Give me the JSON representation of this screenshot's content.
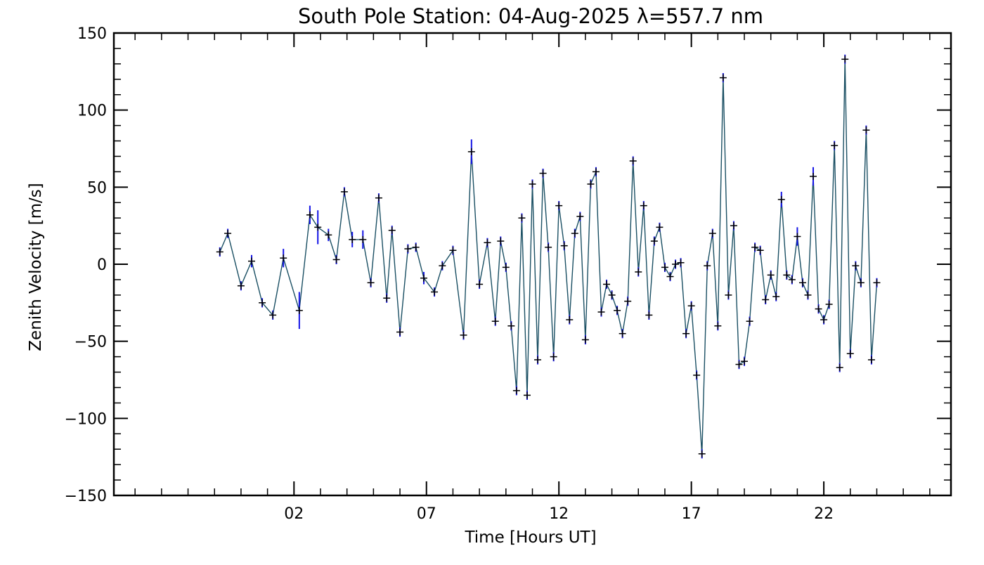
{
  "chart_data": {
    "type": "scatter",
    "title": "South Pole Station: 04-Aug-2025 λ=557.7 nm",
    "xlabel": "Time [Hours UT]",
    "ylabel": "Zenith Velocity [m/s]",
    "xlim": [
      -4.8,
      26.8
    ],
    "ylim": [
      -150,
      150
    ],
    "x_major_ticks": [
      2,
      7,
      12,
      17,
      22
    ],
    "x_tick_labels": [
      "02",
      "07",
      "12",
      "17",
      "22"
    ],
    "y_major_ticks": [
      -150,
      -100,
      -50,
      0,
      50,
      100,
      150
    ],
    "y_tick_labels": [
      "-150",
      "-100",
      "-50",
      "0",
      "50",
      "100",
      "150"
    ],
    "grid": false,
    "colors": {
      "line": "#1a4f63",
      "error_bar": "#1414e6",
      "marker": "#000000"
    },
    "series": [
      {
        "marker": "plus",
        "connected": true,
        "x": [
          -0.8,
          -0.5,
          -0.0,
          0.4,
          0.8,
          1.2,
          1.6,
          2.2,
          2.6,
          2.9,
          3.3,
          3.6,
          3.9,
          4.2,
          4.6,
          4.9,
          5.2,
          5.5,
          5.7,
          6.0,
          6.3,
          6.6,
          6.9,
          7.3,
          7.6,
          8.0,
          8.4,
          8.7,
          9.0,
          9.3,
          9.6,
          9.8,
          10.0,
          10.2,
          10.4,
          10.6,
          10.8,
          11.0,
          11.2,
          11.4,
          11.6,
          11.8,
          12.0,
          12.2,
          12.4,
          12.6,
          12.8,
          13.0,
          13.2,
          13.4,
          13.6,
          13.8,
          14.0,
          14.2,
          14.4,
          14.6,
          14.8,
          15.0,
          15.2,
          15.4,
          15.6,
          15.8,
          16.0,
          16.2,
          16.4,
          16.6,
          16.8,
          17.0,
          17.2,
          17.4,
          17.6,
          17.8,
          18.0,
          18.2,
          18.4,
          18.6,
          18.8,
          19.0,
          19.2,
          19.4,
          19.6,
          19.8,
          20.0,
          20.2,
          20.4,
          20.6,
          20.8,
          21.0,
          21.2,
          21.4,
          21.6,
          21.8,
          22.0,
          22.2,
          22.4,
          22.6,
          22.8,
          23.0,
          23.2,
          23.4,
          23.6,
          23.8,
          24.0
        ],
        "y": [
          8,
          20,
          -14,
          2,
          -25,
          -33,
          4,
          -30,
          32,
          24,
          19,
          3,
          47,
          16,
          16,
          -12,
          43,
          -22,
          22,
          -44,
          10,
          11,
          -9,
          -18,
          -1,
          9,
          -46,
          73,
          -13,
          14,
          -37,
          15,
          -2,
          -40,
          -82,
          30,
          -85,
          52,
          -62,
          59,
          11,
          -60,
          38,
          12,
          -36,
          20,
          31,
          -49,
          52,
          60,
          -31,
          -13,
          -20,
          -30,
          -45,
          -24,
          67,
          -5,
          38,
          -33,
          15,
          24,
          -2,
          -8,
          0,
          1,
          -45,
          -27,
          -72,
          -123,
          -1,
          20,
          -40,
          121,
          -20,
          25,
          -65,
          -63,
          -37,
          11,
          9,
          -23,
          -7,
          -21,
          42,
          -7,
          -10,
          18,
          -12,
          -20,
          57,
          -29,
          -36,
          -26,
          77,
          -67,
          133,
          -58,
          -1,
          -12,
          87,
          -62,
          -12
        ],
        "err": [
          3,
          3,
          3,
          4,
          3,
          3,
          6,
          12,
          6,
          11,
          4,
          3,
          3,
          5,
          6,
          3,
          3,
          3,
          3,
          3,
          3,
          3,
          4,
          3,
          3,
          3,
          3,
          8,
          3,
          3,
          3,
          3,
          3,
          3,
          3,
          3,
          3,
          3,
          3,
          3,
          3,
          3,
          3,
          3,
          3,
          3,
          3,
          3,
          3,
          3,
          3,
          3,
          3,
          3,
          3,
          3,
          3,
          3,
          3,
          3,
          3,
          3,
          3,
          3,
          3,
          3,
          3,
          3,
          3,
          3,
          3,
          3,
          3,
          3,
          3,
          3,
          3,
          3,
          3,
          3,
          3,
          3,
          3,
          3,
          5,
          3,
          3,
          6,
          3,
          3,
          6,
          3,
          3,
          3,
          3,
          3,
          3,
          3,
          3,
          3,
          3,
          3,
          3
        ]
      }
    ]
  }
}
